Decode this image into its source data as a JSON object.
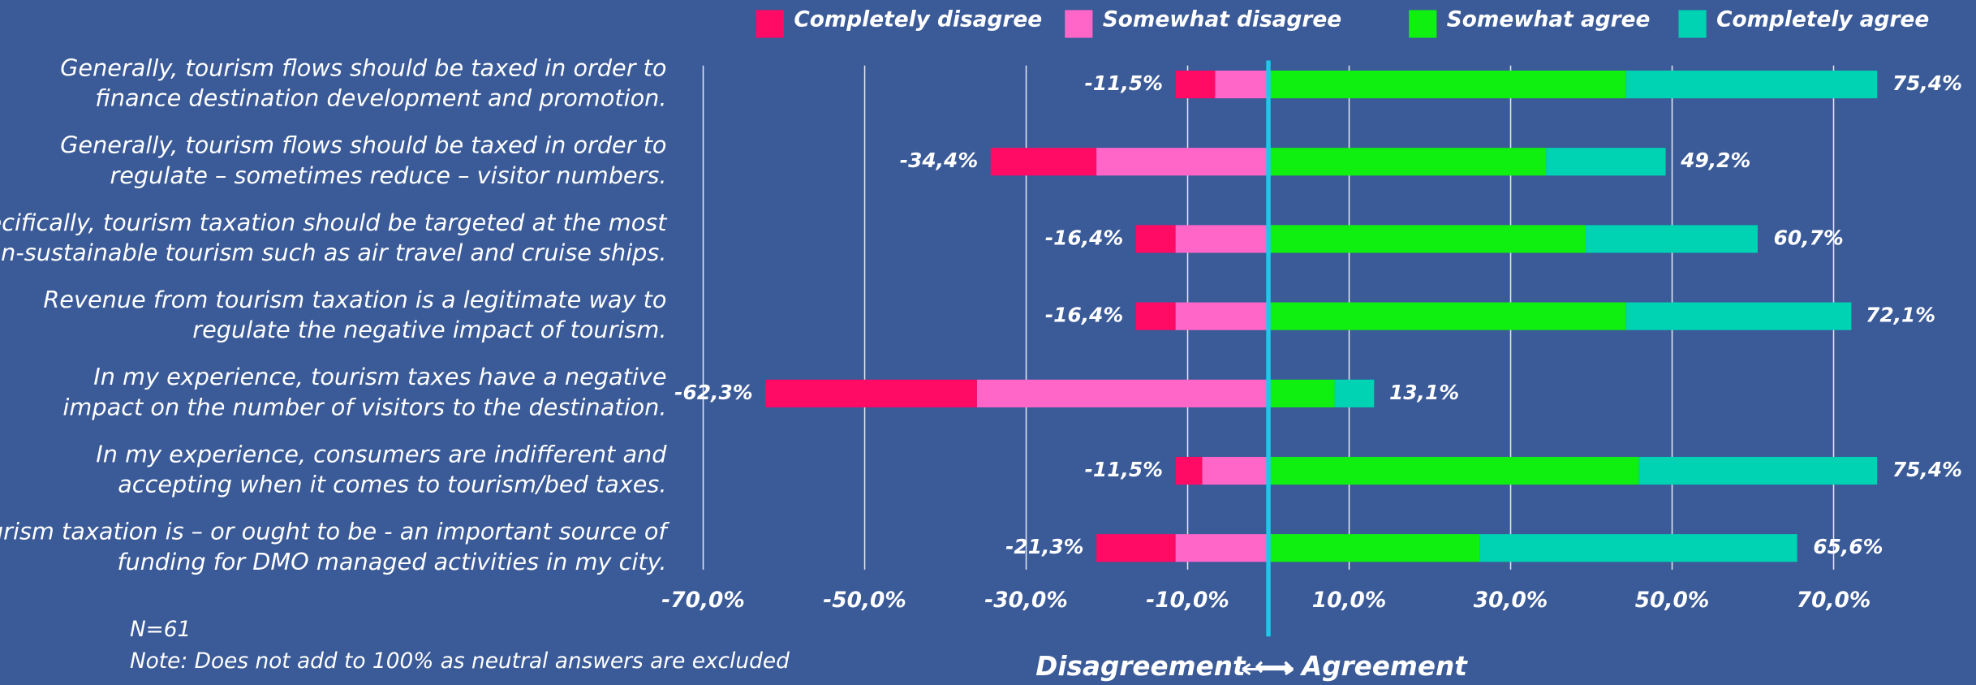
{
  "chart_data": {
    "type": "diverging-bar",
    "categories": [
      [
        "Generally, tourism flows should be taxed in order to",
        "finance destination development and promotion."
      ],
      [
        "Generally, tourism flows should be taxed in order to",
        "regulate – sometimes reduce – visitor numbers."
      ],
      [
        "Specifically, tourism taxation should be targeted at the most",
        "non-sustainable tourism such as air travel and cruise ships."
      ],
      [
        "Revenue from tourism taxation is a legitimate way to",
        "regulate the negative impact of tourism."
      ],
      [
        "In my experience, tourism taxes have a negative",
        "impact on the number of visitors to the destination."
      ],
      [
        "In my experience, consumers are indifferent and",
        "accepting when it comes to tourism/bed taxes."
      ],
      [
        "Tourism taxation is – or ought to be - an important source of",
        "funding for DMO managed activities in my city."
      ]
    ],
    "series": [
      {
        "name": "Completely disagree",
        "color": "#ff0a64",
        "values": [
          -4.9,
          -13.1,
          -4.9,
          -4.9,
          -26.2,
          -3.3,
          -9.8
        ]
      },
      {
        "name": "Somewhat disagree",
        "color": "#ff66c8",
        "values": [
          -6.6,
          -21.3,
          -11.5,
          -11.5,
          -36.1,
          -8.2,
          -11.5
        ]
      },
      {
        "name": "Somewhat agree",
        "color": "#10f010",
        "values": [
          44.3,
          34.4,
          39.3,
          44.3,
          8.2,
          45.9,
          26.2
        ]
      },
      {
        "name": "Completely agree",
        "color": "#00d2b4",
        "values": [
          31.1,
          14.8,
          21.3,
          27.9,
          4.9,
          29.5,
          39.3
        ]
      }
    ],
    "disagree_totals": {
      "values": [
        -11.5,
        -34.4,
        -16.4,
        -16.4,
        -62.3,
        -11.5,
        -21.3
      ],
      "value_labels": [
        "-11,5%",
        "-34,4%",
        "-16,4%",
        "-16,4%",
        "-62,3%",
        "-11,5%",
        "-21,3%"
      ]
    },
    "agree_totals": {
      "values": [
        75.4,
        49.2,
        60.7,
        72.1,
        13.1,
        75.4,
        65.6
      ],
      "value_labels": [
        "75,4%",
        "49,2%",
        "60,7%",
        "72,1%",
        "13,1%",
        "75,4%",
        "65,6%"
      ]
    },
    "xlim": [
      -70,
      70
    ],
    "xticks": [
      {
        "value": -70,
        "label": "-70,0%"
      },
      {
        "value": -50,
        "label": "-50,0%"
      },
      {
        "value": -30,
        "label": "-30,0%"
      },
      {
        "value": -10,
        "label": "-10,0%"
      },
      {
        "value": 10,
        "label": "10,0%"
      },
      {
        "value": 30,
        "label": "30,0%"
      },
      {
        "value": 50,
        "label": "50,0%"
      },
      {
        "value": 70,
        "label": "70,0%"
      }
    ],
    "grid": true,
    "xlabel": "Disagreement ⟷ Agreement",
    "notes": [
      "N=61",
      "Note: Does not add to 100% as neutral answers are excluded"
    ]
  }
}
